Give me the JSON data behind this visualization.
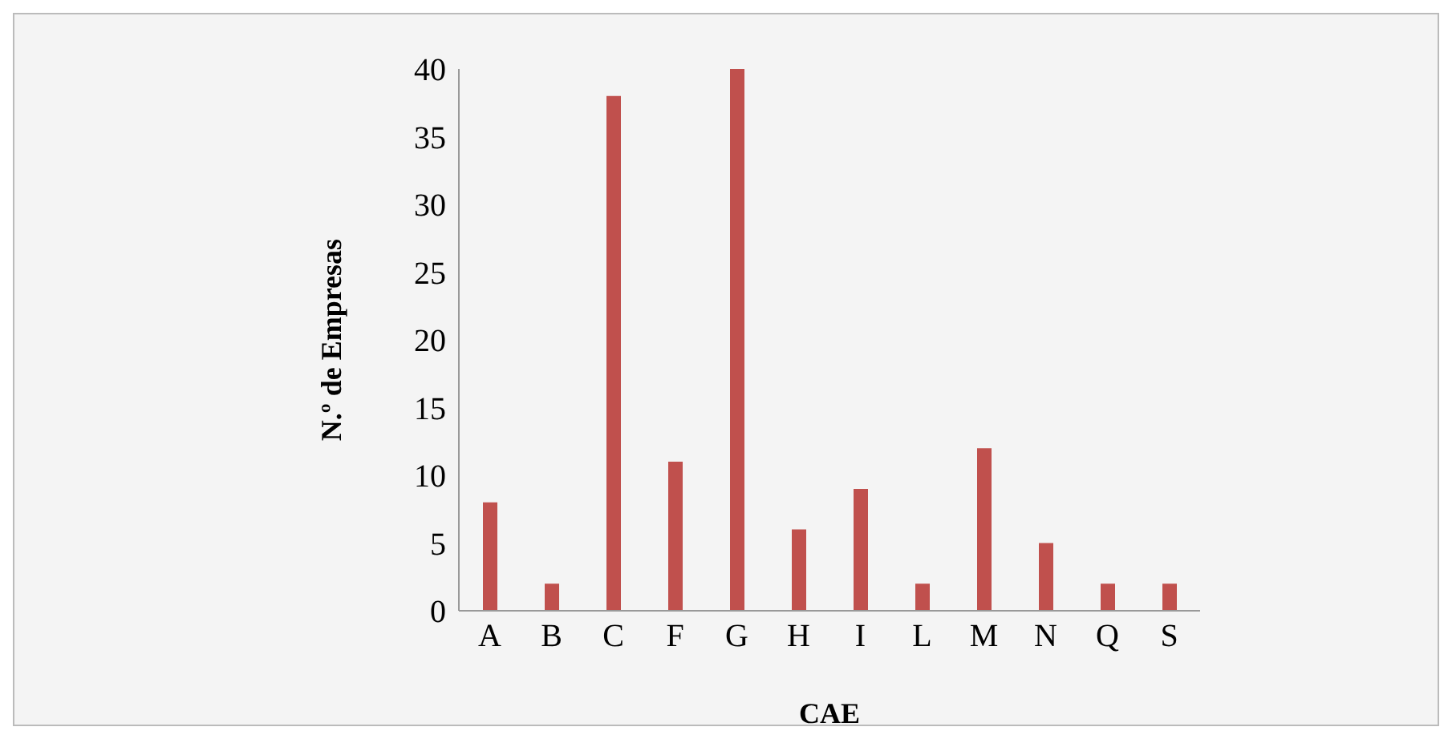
{
  "chart_data": {
    "type": "bar",
    "xlabel": "CAE",
    "ylabel": "N.º de Empresas",
    "categories": [
      "A",
      "B",
      "C",
      "F",
      "G",
      "H",
      "I",
      "L",
      "M",
      "N",
      "Q",
      "S"
    ],
    "values": [
      8,
      2,
      38,
      11,
      40,
      6,
      9,
      2,
      12,
      5,
      2,
      2
    ],
    "color": "#c0504d",
    "ylim": [
      0,
      40
    ],
    "yticks": [
      0,
      5,
      10,
      15,
      20,
      25,
      30,
      35,
      40
    ],
    "grid": false,
    "legend": false
  }
}
